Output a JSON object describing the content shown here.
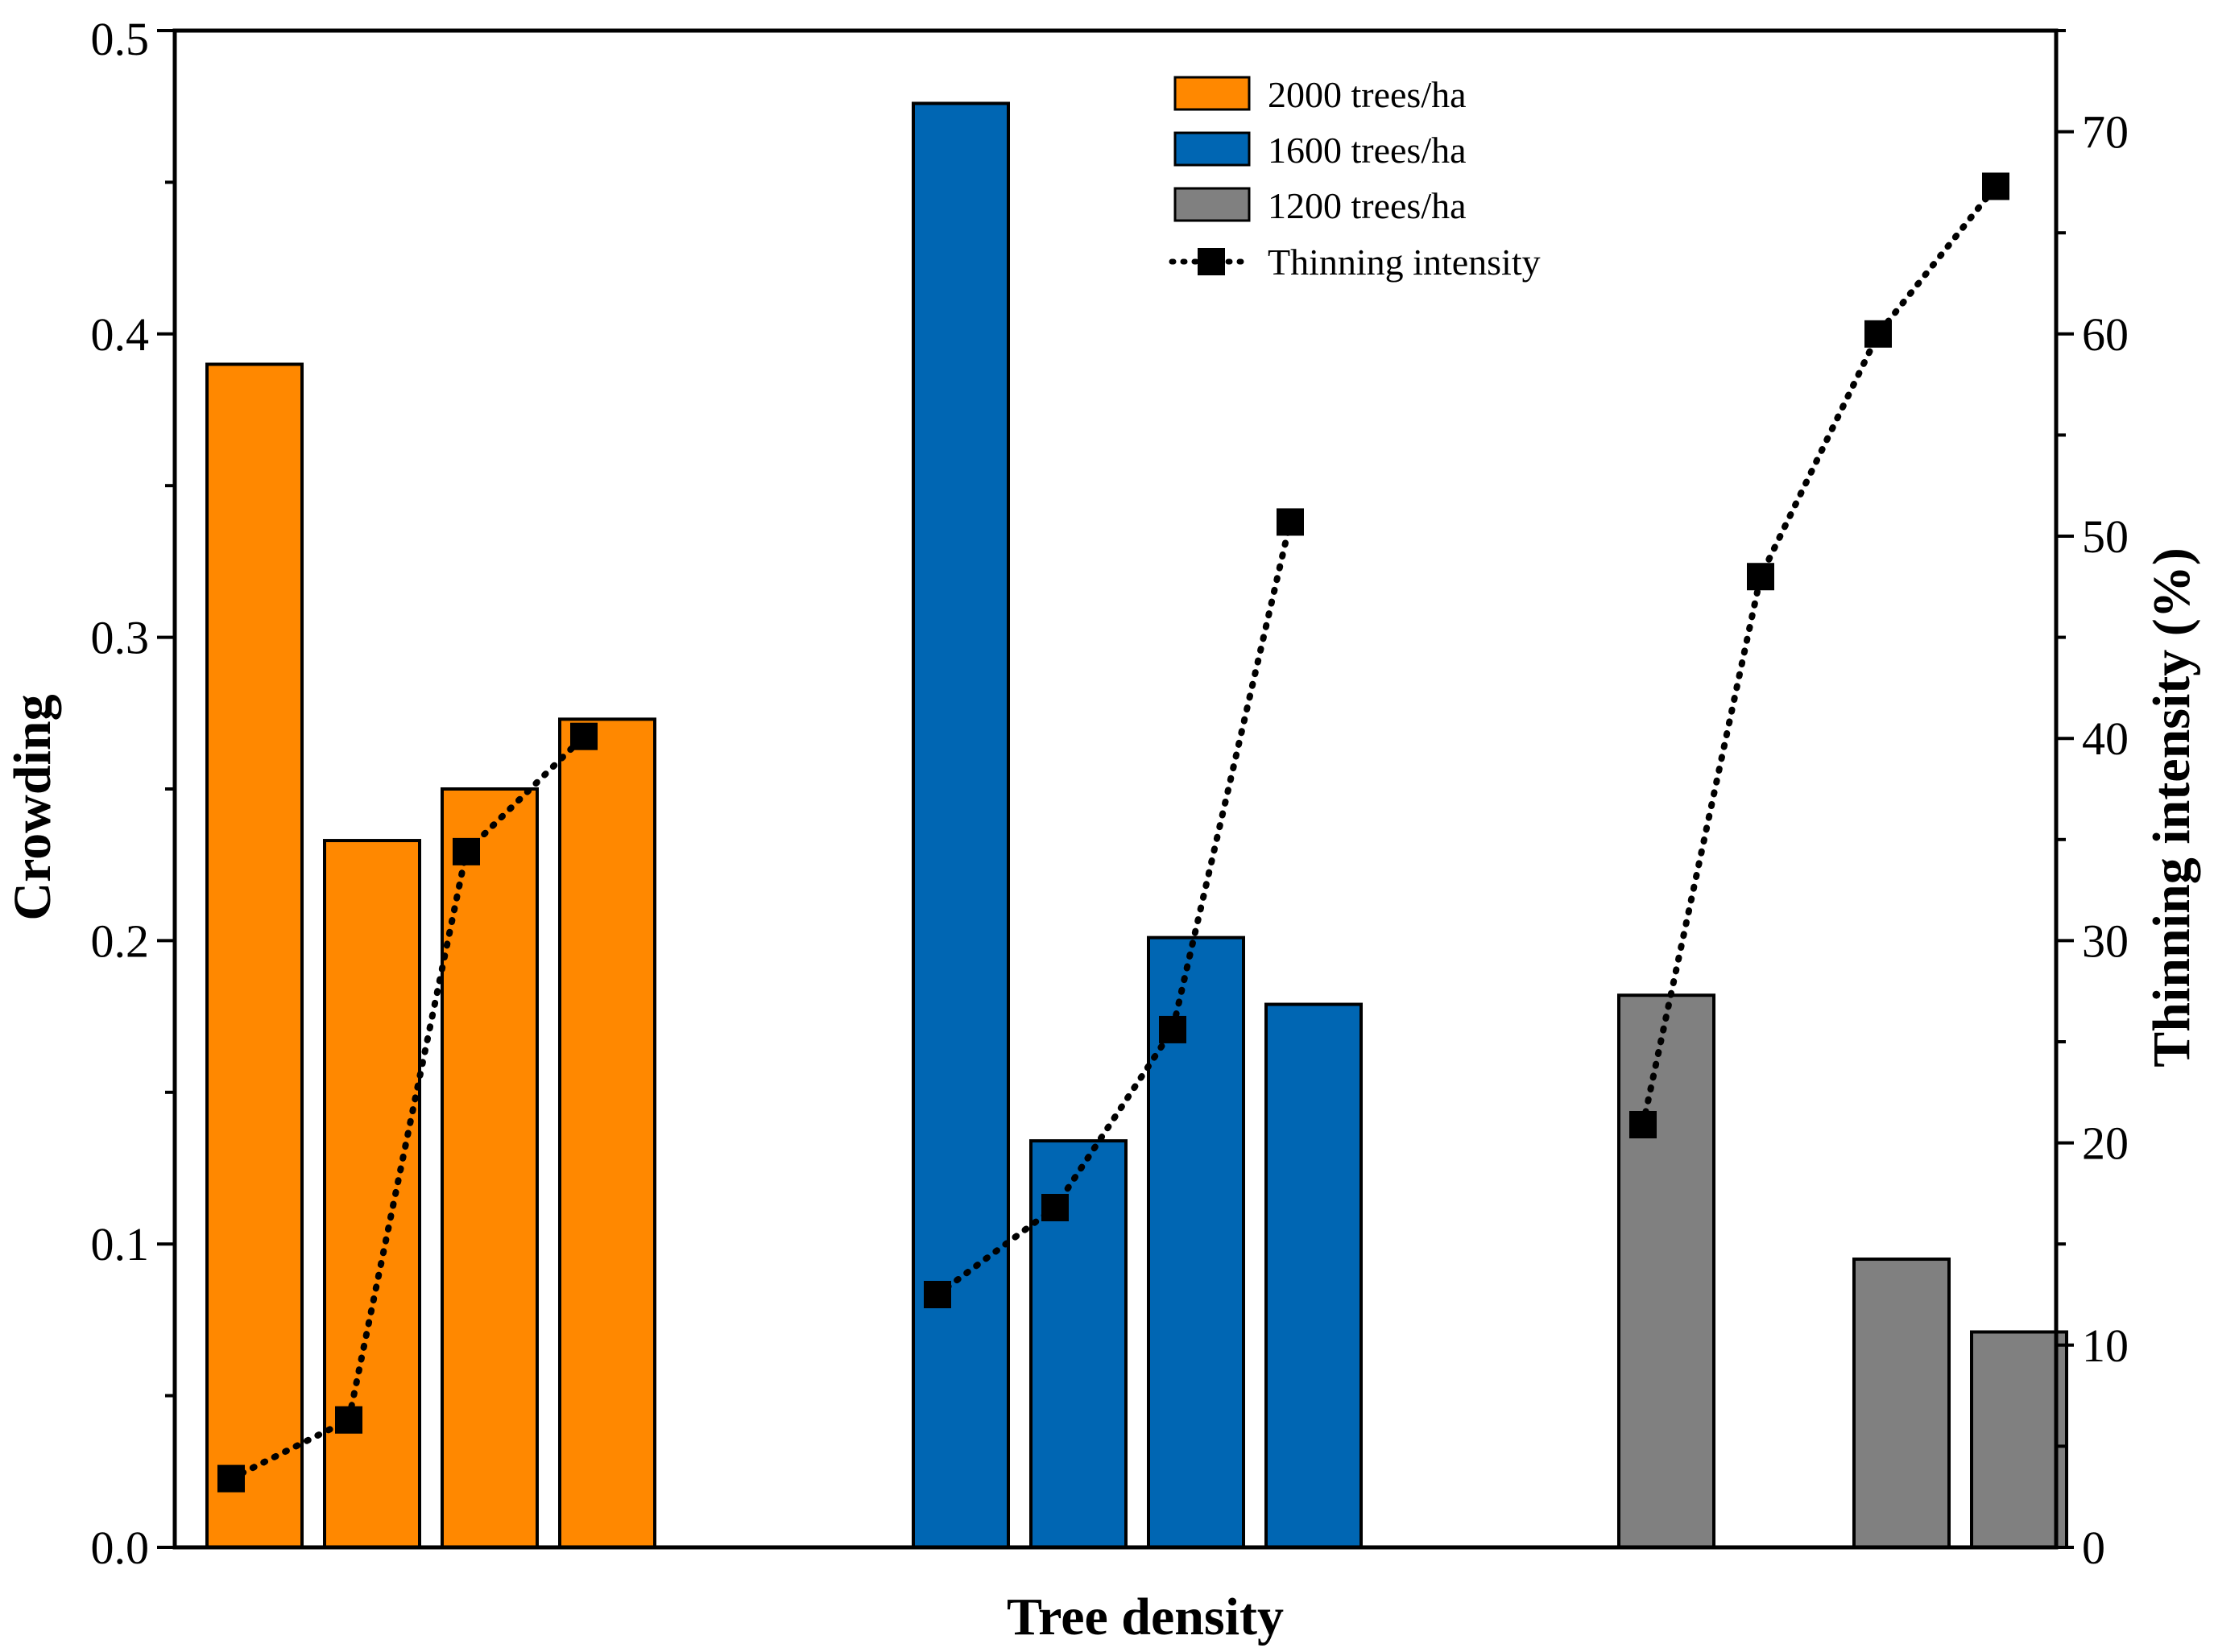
{
  "chart_data": {
    "type": "bar",
    "title": "",
    "xlabel": "Tree density",
    "ylabel": "Crowding",
    "y2label": "Thinning intensity (%)",
    "ylim": [
      0,
      0.5
    ],
    "y2lim": [
      0,
      75
    ],
    "yticks": [
      "0.0",
      "0.1",
      "0.2",
      "0.3",
      "0.4",
      "0.5"
    ],
    "y2ticks": [
      "0",
      "10",
      "20",
      "30",
      "40",
      "50",
      "60",
      "70"
    ],
    "groups": [
      {
        "name": "2000 trees/ha",
        "color": "#FF8800",
        "values": [
          0.39,
          0.233,
          0.25,
          0.273
        ]
      },
      {
        "name": "1600 trees/ha",
        "color": "#0066B3",
        "values": [
          0.476,
          0.134,
          0.201,
          0.179
        ]
      },
      {
        "name": "1200 trees/ha",
        "color": "#808080",
        "values": [
          0.182,
          null,
          0.095,
          0.071
        ]
      }
    ],
    "line_series": {
      "name": "Thinning intensity",
      "color": "#000000",
      "values": [
        [
          3.4,
          6.3,
          34.4,
          40.1
        ],
        [
          12.5,
          16.8,
          25.6,
          50.7
        ],
        [
          20.9,
          48.0,
          60.0,
          67.3
        ]
      ]
    },
    "legend_position": "top-center",
    "grid": false
  }
}
